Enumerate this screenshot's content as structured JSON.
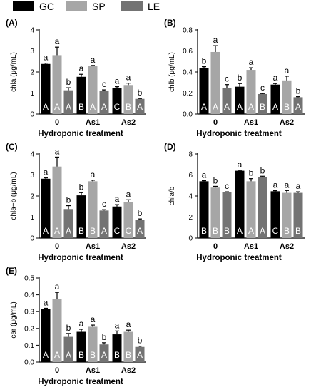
{
  "legend": [
    {
      "label": "GC",
      "color": "#000000"
    },
    {
      "label": "SP",
      "color": "#a6a6a6"
    },
    {
      "label": "LE",
      "color": "#737373"
    }
  ],
  "colors": {
    "GC": "#000000",
    "SP": "#a6a6a6",
    "LE": "#737373",
    "inner_letter": "#ffffff"
  },
  "chart_data": [
    {
      "type": "bar",
      "panel": "(A)",
      "categories": [
        "0",
        "As1",
        "As2"
      ],
      "xlabel": "Hydroponic treatment",
      "ylabel": "chla (μg/mL)",
      "ylim": [
        0,
        4
      ],
      "yticks": [
        0,
        1,
        2,
        3,
        4
      ],
      "yticklabels": [
        "0",
        "1",
        "2",
        "3",
        "4"
      ],
      "series": [
        {
          "name": "GC",
          "values": [
            2.38,
            1.77,
            1.22
          ],
          "errors": [
            0.04,
            0.12,
            0.08
          ],
          "letters_top": [
            "a",
            "a",
            "a"
          ],
          "letters_bottom": [
            "A",
            "B",
            "C"
          ]
        },
        {
          "name": "SP",
          "values": [
            2.8,
            2.27,
            1.38
          ],
          "errors": [
            0.38,
            0.04,
            0.09
          ],
          "letters_top": [
            "a",
            "a",
            "a"
          ],
          "letters_bottom": [
            "A",
            "A",
            "B"
          ]
        },
        {
          "name": "LE",
          "values": [
            1.13,
            1.12,
            0.72
          ],
          "errors": [
            0.12,
            0.03,
            0.02
          ],
          "letters_top": [
            "b",
            "c",
            "b"
          ],
          "letters_bottom": [
            "A",
            "A",
            "A"
          ]
        }
      ]
    },
    {
      "type": "bar",
      "panel": "(B)",
      "categories": [
        "0",
        "As1",
        "As2"
      ],
      "xlabel": "Hydroponic treatment",
      "ylabel": "chlb (μg/mL)",
      "ylim": [
        0,
        0.8
      ],
      "yticks": [
        0,
        0.2,
        0.4,
        0.6,
        0.8
      ],
      "yticklabels": [
        "0.0",
        "0.2",
        "0.4",
        "0.6",
        "0.8"
      ],
      "series": [
        {
          "name": "GC",
          "values": [
            0.44,
            0.26,
            0.28
          ],
          "errors": [
            0.01,
            0.03,
            0.01
          ],
          "letters_top": [
            "b",
            "b",
            "a"
          ],
          "letters_bottom": [
            "A",
            "A",
            "A"
          ]
        },
        {
          "name": "SP",
          "values": [
            0.59,
            0.42,
            0.32
          ],
          "errors": [
            0.06,
            0.02,
            0.04
          ],
          "letters_top": [
            "a",
            "a",
            "a"
          ],
          "letters_bottom": [
            "A",
            "A",
            "B"
          ]
        },
        {
          "name": "LE",
          "values": [
            0.25,
            0.19,
            0.16
          ],
          "errors": [
            0.03,
            0.005,
            0.005
          ],
          "letters_top": [
            "c",
            "c",
            "b"
          ],
          "letters_bottom": [
            "A",
            "B",
            "A"
          ]
        }
      ]
    },
    {
      "type": "bar",
      "panel": "(C)",
      "categories": [
        "0",
        "As1",
        "As2"
      ],
      "xlabel": "Hydroponic treatment",
      "ylabel": "chla+b (μg/mL)",
      "ylim": [
        0,
        4
      ],
      "yticks": [
        0,
        1,
        2,
        3,
        4
      ],
      "yticklabels": [
        "0",
        "1",
        "2",
        "3",
        "4"
      ],
      "series": [
        {
          "name": "GC",
          "values": [
            2.82,
            2.03,
            1.5
          ],
          "errors": [
            0.04,
            0.13,
            0.09
          ],
          "letters_top": [
            "a",
            "b",
            "a"
          ],
          "letters_bottom": [
            "A",
            "B",
            "C"
          ]
        },
        {
          "name": "SP",
          "values": [
            3.4,
            2.7,
            1.7
          ],
          "errors": [
            0.45,
            0.05,
            0.12
          ],
          "letters_top": [
            "a",
            "a",
            "a"
          ],
          "letters_bottom": [
            "A",
            "B",
            "C"
          ]
        },
        {
          "name": "LE",
          "values": [
            1.38,
            1.31,
            0.88
          ],
          "errors": [
            0.16,
            0.04,
            0.03
          ],
          "letters_top": [
            "b",
            "c",
            "b"
          ],
          "letters_bottom": [
            "A",
            "A",
            "A"
          ]
        }
      ]
    },
    {
      "type": "bar",
      "panel": "(D)",
      "categories": [
        "0",
        "As1",
        "As2"
      ],
      "xlabel": "Hydroponic treatment",
      "ylabel": "chla/b",
      "ylim": [
        0,
        8
      ],
      "yticks": [
        0,
        2,
        4,
        6,
        8
      ],
      "yticklabels": [
        "0",
        "2",
        "4",
        "6",
        "8"
      ],
      "series": [
        {
          "name": "GC",
          "values": [
            5.4,
            6.4,
            4.45
          ],
          "errors": [
            0.05,
            0.05,
            0.05
          ],
          "letters_top": [
            "a",
            "a",
            "a"
          ],
          "letters_bottom": [
            "B",
            "A",
            "C"
          ]
        },
        {
          "name": "SP",
          "values": [
            4.8,
            5.4,
            4.3
          ],
          "errors": [
            0.12,
            0.25,
            0.22
          ],
          "letters_top": [
            "b",
            "b",
            "a"
          ],
          "letters_bottom": [
            "B",
            "A",
            "B"
          ]
        },
        {
          "name": "LE",
          "values": [
            4.35,
            5.8,
            4.3
          ],
          "errors": [
            0.05,
            0.08,
            0.1
          ],
          "letters_top": [
            "c",
            "b",
            "a"
          ],
          "letters_bottom": [
            "B",
            "A",
            "B"
          ]
        }
      ]
    },
    {
      "type": "bar",
      "panel": "(E)",
      "categories": [
        "0",
        "As1",
        "As2"
      ],
      "xlabel": "Hydroponic treatment",
      "ylabel": "car (μg/mL)",
      "ylim": [
        0,
        0.5
      ],
      "yticks": [
        0,
        0.1,
        0.2,
        0.3,
        0.4,
        0.5
      ],
      "yticklabels": [
        "0.0",
        "0.1",
        "0.2",
        "0.3",
        "0.4",
        "0.5"
      ],
      "series": [
        {
          "name": "GC",
          "values": [
            0.315,
            0.18,
            0.165
          ],
          "errors": [
            0.005,
            0.015,
            0.02
          ],
          "letters_top": [
            "a",
            "a",
            "a"
          ],
          "letters_bottom": [
            "A",
            "B",
            "B"
          ]
        },
        {
          "name": "SP",
          "values": [
            0.375,
            0.21,
            0.18
          ],
          "errors": [
            0.04,
            0.01,
            0.01
          ],
          "letters_top": [
            "a",
            "a",
            "a"
          ],
          "letters_bottom": [
            "A",
            "B",
            "B"
          ]
        },
        {
          "name": "LE",
          "values": [
            0.15,
            0.105,
            0.09
          ],
          "errors": [
            0.02,
            0.01,
            0.005
          ],
          "letters_top": [
            "b",
            "b",
            "b"
          ],
          "letters_bottom": [
            "A",
            "A",
            "A"
          ]
        }
      ]
    }
  ]
}
